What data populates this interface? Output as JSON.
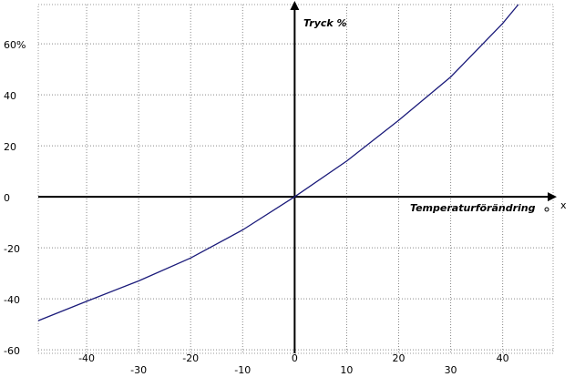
{
  "chart_data": {
    "type": "line",
    "y_axis_label": "Tryck %",
    "x_axis_label": "Temperaturförändring",
    "x_axis_symbol": "x",
    "x": [
      -49.3,
      -40,
      -30,
      -20,
      -10,
      0,
      10,
      20,
      30,
      40,
      43
    ],
    "series": [
      {
        "color": "#1a1a7a",
        "values": [
          -48.6,
          -41,
          -33,
          -24,
          -13,
          0,
          14,
          30,
          47,
          68,
          75.4
        ]
      }
    ],
    "xlim": [
      -49.3,
      49.7
    ],
    "ylim": [
      -61.4,
      75.4
    ],
    "xticks": [
      -40,
      -30,
      -20,
      -10,
      0,
      10,
      20,
      30,
      40
    ],
    "yticks": [
      -60,
      -40,
      -20,
      0,
      20,
      40,
      {
        "value": 60,
        "label": "60%"
      }
    ],
    "grid": true
  }
}
